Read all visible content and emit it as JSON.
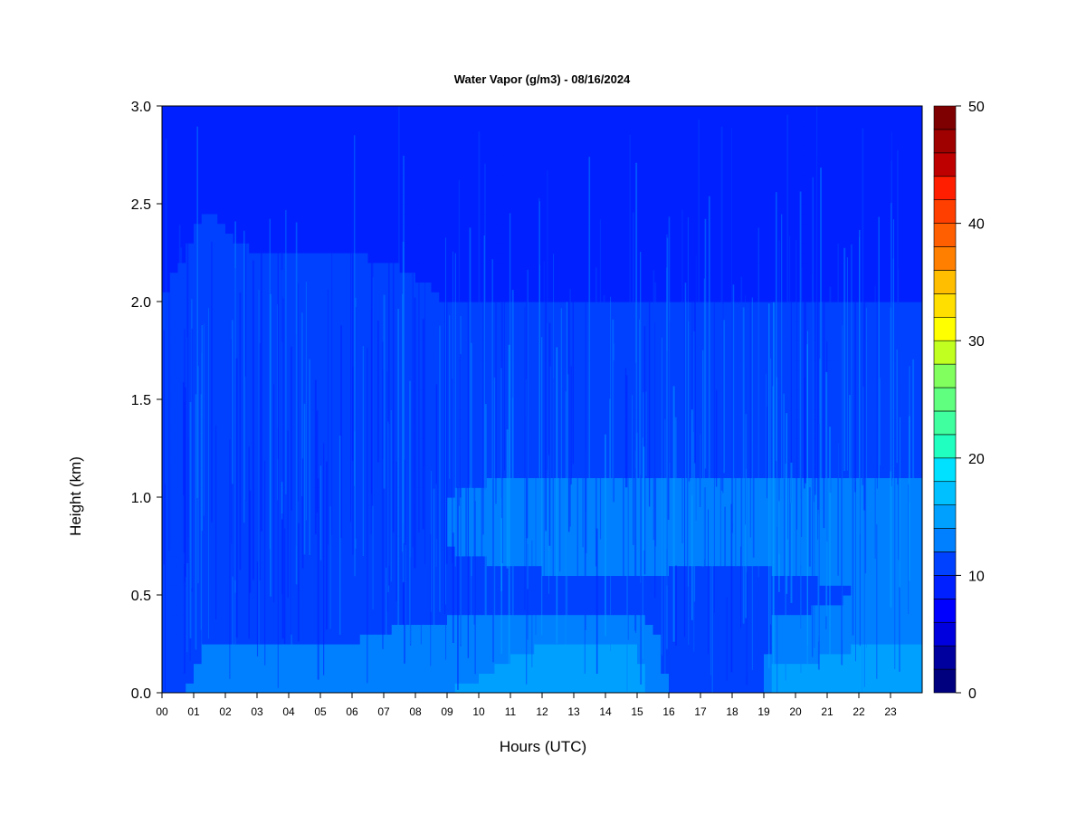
{
  "chart_data": {
    "type": "heatmap",
    "title": "Water Vapor (g/m3) - 08/16/2024",
    "xlabel": "Hours (UTC)",
    "ylabel": "Height (km)",
    "x_ticks": [
      "00",
      "01",
      "02",
      "03",
      "04",
      "05",
      "06",
      "07",
      "08",
      "09",
      "10",
      "11",
      "12",
      "13",
      "14",
      "15",
      "16",
      "17",
      "18",
      "19",
      "20",
      "21",
      "22",
      "23"
    ],
    "xlim": [
      0,
      24
    ],
    "y_ticks": [
      "0.0",
      "0.5",
      "1.0",
      "1.5",
      "2.0",
      "2.5",
      "3.0"
    ],
    "ylim": [
      0,
      3
    ],
    "colorbar": {
      "min": 0,
      "max": 50,
      "levels": 25,
      "ticks": [
        "0",
        "10",
        "20",
        "30",
        "40",
        "50"
      ],
      "colors": [
        "#00007f",
        "#00009f",
        "#0000bf",
        "#0000df",
        "#0000ff",
        "#0020ff",
        "#0040ff",
        "#0060ff",
        "#0080ff",
        "#00a0ff",
        "#00c0ff",
        "#00e0ff",
        "#00ffdf",
        "#20ffbf",
        "#40ff9f",
        "#60ff7f",
        "#80ff5f",
        "#a0ff3f",
        "#c0ff1f",
        "#ffff00",
        "#ffdf00",
        "#ffbf00",
        "#ff9f00",
        "#ff7f00",
        "#ff5f00",
        "#ff3f00",
        "#ff1f00",
        "#df0000",
        "#bf0000",
        "#9f0000",
        "#7f0000"
      ]
    },
    "field_summary": {
      "height_km": [
        0.0,
        0.25,
        0.5,
        0.75,
        1.0,
        1.25,
        1.5,
        2.0,
        2.5,
        3.0
      ],
      "hours": [
        0,
        1.5,
        3,
        6,
        9,
        12,
        15,
        16,
        19,
        19.3,
        22,
        24
      ],
      "values_gm3": [
        [
          10,
          14,
          14,
          14,
          14,
          15,
          15,
          12,
          12,
          15,
          15,
          15
        ],
        [
          10,
          12,
          12,
          12,
          13,
          14,
          14,
          11,
          11,
          13,
          14,
          14
        ],
        [
          10,
          11,
          11,
          11,
          11,
          11,
          11,
          11,
          10,
          11,
          12,
          12
        ],
        [
          10,
          11,
          11,
          11,
          12,
          13,
          13,
          13,
          13,
          13,
          13,
          13
        ],
        [
          10,
          11,
          11,
          11,
          12,
          13,
          13,
          13,
          13,
          13,
          13,
          13
        ],
        [
          10,
          11,
          11,
          11,
          11,
          11,
          11,
          11,
          11,
          11,
          11,
          11
        ],
        [
          10,
          11,
          11,
          11,
          11,
          12,
          12,
          12,
          12,
          12,
          12,
          12
        ],
        [
          10,
          11,
          11,
          11,
          10,
          10,
          10,
          10,
          10,
          10,
          10,
          10
        ],
        [
          9,
          10,
          9,
          9,
          9,
          9,
          9,
          9,
          9,
          9,
          9,
          9
        ],
        [
          8,
          8,
          8,
          8,
          8,
          8,
          8,
          8,
          8,
          8,
          8,
          8
        ]
      ]
    }
  }
}
